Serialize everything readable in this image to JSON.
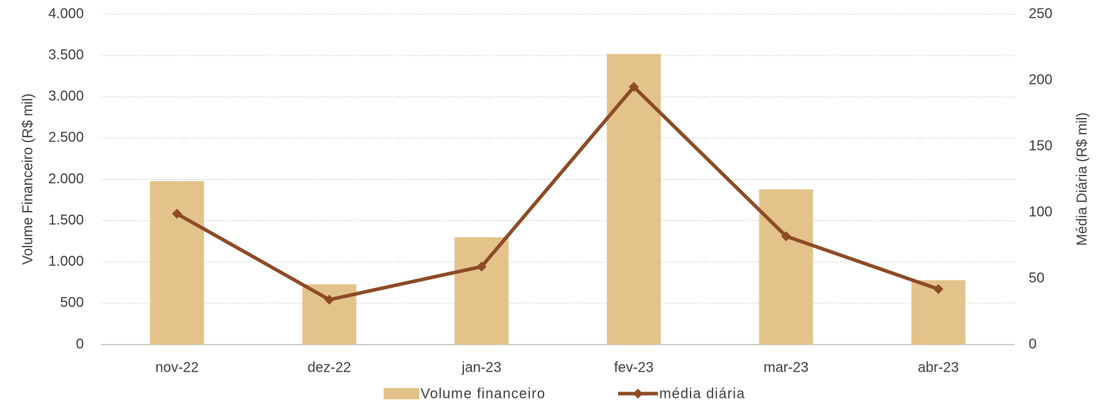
{
  "chart_data": {
    "type": "bar_line",
    "categories": [
      "nov-22",
      "dez-22",
      "jan-23",
      "fev-23",
      "mar-23",
      "abr-23"
    ],
    "series": [
      {
        "name": "Volume financeiro",
        "type": "bar",
        "color": "#e4c38a",
        "axis": "y",
        "values": [
          1980,
          730,
          1300,
          3520,
          1880,
          780
        ]
      },
      {
        "name": "média diária",
        "type": "line",
        "color": "#8c4b26",
        "axis": "y2",
        "values": [
          99,
          34,
          59,
          195,
          82,
          42
        ]
      }
    ],
    "ylabel": "Volume Financeiro  (R$ mil)",
    "y2label": "Média Diária  (R$ mil)",
    "ylim": [
      0,
      4000
    ],
    "yticks": [
      0,
      500,
      {
        "value": 1000,
        "label": "1.000"
      },
      {
        "value": 1500,
        "label": "1.500"
      },
      {
        "value": 2000,
        "label": "2.000"
      },
      {
        "value": 2500,
        "label": "2.500"
      },
      {
        "value": 3000,
        "label": "3.000"
      },
      {
        "value": 3500,
        "label": "3.500"
      },
      {
        "value": 4000,
        "label": "4.000"
      }
    ],
    "y2lim": [
      0,
      250
    ],
    "y2ticks": [
      0,
      50,
      100,
      150,
      200,
      250
    ],
    "grid": true,
    "legend": "bottom"
  }
}
